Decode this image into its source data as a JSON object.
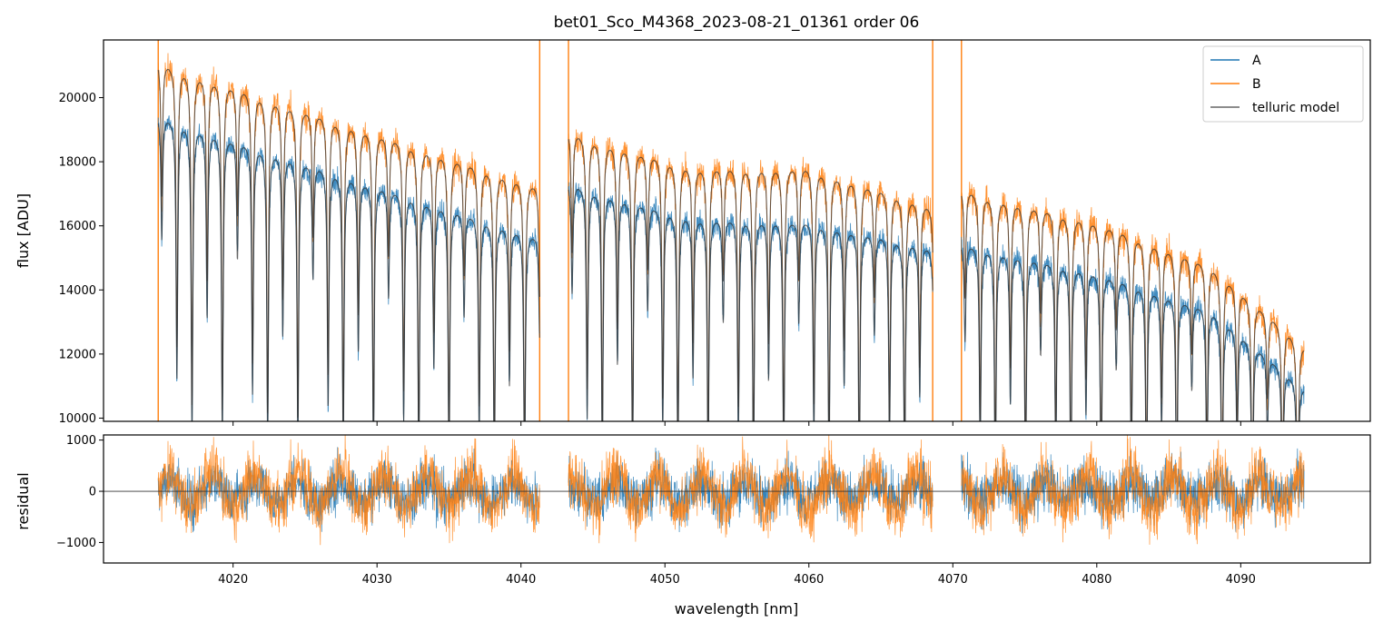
{
  "chart_data": {
    "title": "bet01_Sco_M4368_2023-08-21_01361  order 06",
    "xlabel": "wavelength [nm]",
    "xlim": [
      4011,
      4099
    ],
    "x_ticks": [
      "4020",
      "4030",
      "4040",
      "4050",
      "4060",
      "4070",
      "4080",
      "4090"
    ],
    "colors": {
      "A": "#1f77b4",
      "B": "#ff7f0e",
      "model": "#333333"
    },
    "panels": [
      {
        "name": "flux",
        "type": "line",
        "ylabel": "flux [ADU]",
        "ylim": [
          9900,
          21800
        ],
        "y_ticks": [
          "10000",
          "12000",
          "14000",
          "16000",
          "18000",
          "20000"
        ],
        "legend": {
          "position": "top-right",
          "entries": [
            "A",
            "B",
            "telluric model"
          ]
        },
        "segments": [
          {
            "x_start": 4014.8,
            "x_end": 4041.3,
            "A_continuum": [
              [
                4014.8,
                19500
              ],
              [
                4041.3,
                15700
              ]
            ],
            "B_continuum": [
              [
                4014.8,
                21200
              ],
              [
                4041.3,
                17300
              ]
            ]
          },
          {
            "x_start": 4043.3,
            "x_end": 4068.6,
            "A_continuum": [
              [
                4043.3,
                17400
              ],
              [
                4052,
                16300
              ],
              [
                4060,
                16200
              ],
              [
                4068.6,
                15400
              ]
            ],
            "B_continuum": [
              [
                4043.3,
                19000
              ],
              [
                4052,
                17900
              ],
              [
                4060,
                17900
              ],
              [
                4068.6,
                16700
              ]
            ]
          },
          {
            "x_start": 4070.6,
            "x_end": 4094.4,
            "A_continuum": [
              [
                4070.6,
                15500
              ],
              [
                4080,
                14600
              ],
              [
                4088,
                13400
              ],
              [
                4094.4,
                11000
              ]
            ],
            "B_continuum": [
              [
                4070.6,
                17200
              ],
              [
                4080,
                16200
              ],
              [
                4088,
                14800
              ],
              [
                4094.4,
                12300
              ]
            ]
          }
        ]
      },
      {
        "name": "residual",
        "type": "line",
        "ylabel": "residual",
        "ylim": [
          -1400,
          1100
        ],
        "y_ticks": [
          "1000",
          "0",
          "−1000"
        ],
        "zero_line": 0
      }
    ]
  }
}
